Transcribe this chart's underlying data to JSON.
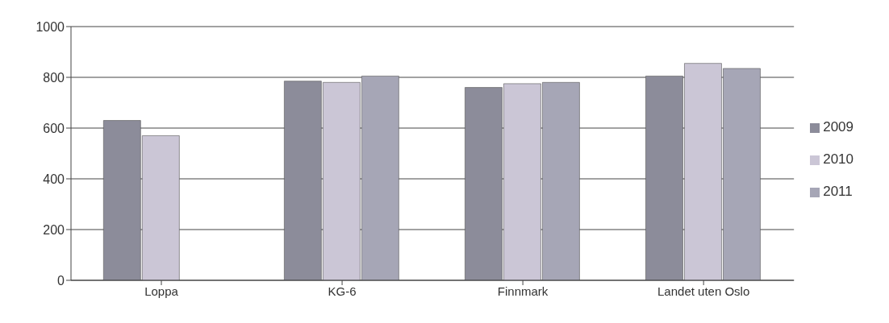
{
  "chart_data": {
    "type": "bar",
    "categories": [
      "Loppa",
      "KG-6",
      "Finnmark",
      "Landet uten Oslo"
    ],
    "series": [
      {
        "name": "2009",
        "color": "#8c8c9a",
        "values": [
          630,
          785,
          760,
          805
        ]
      },
      {
        "name": "2010",
        "color": "#cbc6d6",
        "values": [
          570,
          780,
          775,
          855
        ]
      },
      {
        "name": "2011",
        "color": "#a6a6b6",
        "values": [
          null,
          805,
          780,
          835
        ]
      }
    ],
    "ylim": [
      0,
      1000
    ],
    "yticks": [
      0,
      200,
      400,
      600,
      800,
      1000
    ],
    "grid": "y",
    "legend": "right"
  }
}
